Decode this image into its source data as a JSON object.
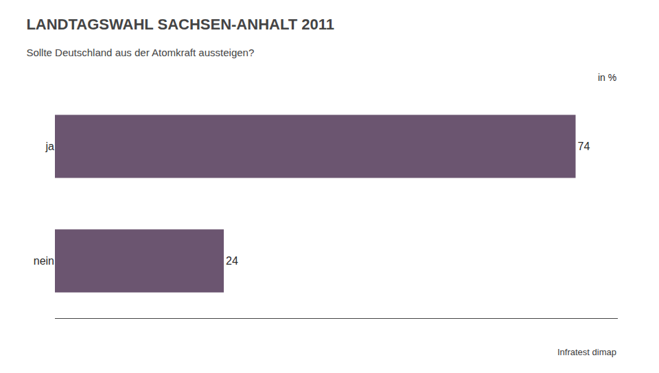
{
  "chart_data": {
    "type": "bar",
    "orientation": "horizontal",
    "title": "LANDTAGSWAHL SACHSEN-ANHALT 2011",
    "subtitle": "Sollte Deutschland aus der Atomkraft aussteigen?",
    "annotations": [
      "in %",
      "Infratest dimap"
    ],
    "categories": [
      "ja",
      "nein"
    ],
    "values": [
      74,
      24
    ],
    "color": "#6b5570",
    "xlim": [
      0,
      80
    ],
    "grid": false,
    "data_labels": true,
    "tick_labels": "y"
  }
}
